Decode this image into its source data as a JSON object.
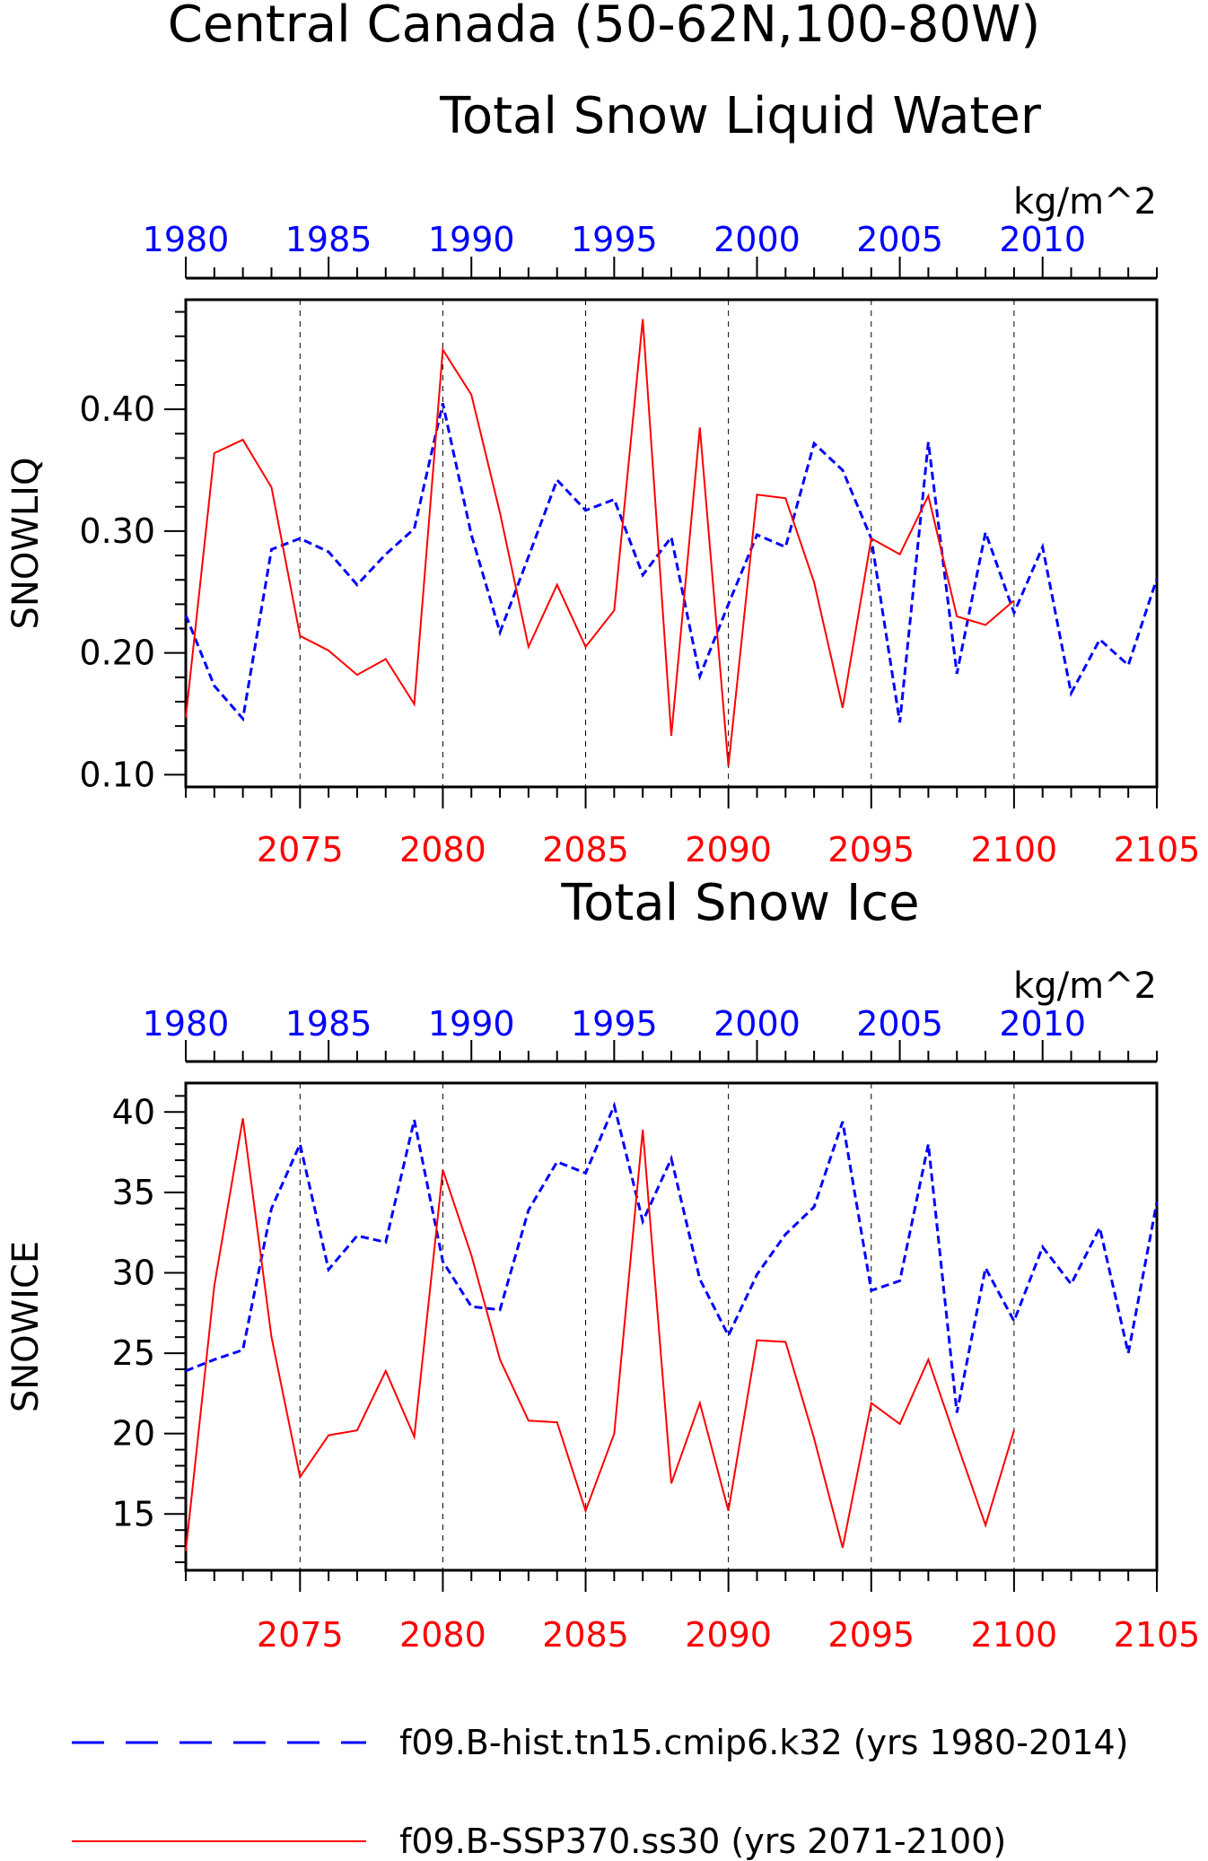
{
  "figure": {
    "title_line1": "Central Canada (50-62N,100-80W)"
  },
  "chart_data": [
    {
      "type": "line",
      "title": "Total Snow Liquid Water",
      "ylabel": "SNOWLIQ",
      "units": "kg/m^2",
      "ylim": [
        0.09,
        0.49
      ],
      "yticks": [
        0.1,
        0.2,
        0.3,
        0.4
      ],
      "ytick_labels": [
        "0.10",
        "0.20",
        "0.30",
        "0.40"
      ],
      "x_bottom": {
        "lim": [
          2071,
          2105
        ],
        "ticks": [
          2075,
          2080,
          2085,
          2090,
          2095,
          2100,
          2105
        ],
        "color": "#ff0000"
      },
      "x_top": {
        "lim": [
          1980,
          2014
        ],
        "ticks": [
          1980,
          1985,
          1990,
          1995,
          2000,
          2005,
          2010
        ],
        "color": "#0000ff"
      },
      "series": [
        {
          "name": "f09.B-hist.tn15.cmip6.k32 (yrs 1980-2014)",
          "axis": "top",
          "color": "#0000ff",
          "dash": "dashed",
          "x": [
            1980,
            1981,
            1982,
            1983,
            1984,
            1985,
            1986,
            1987,
            1988,
            1989,
            1990,
            1991,
            1992,
            1993,
            1994,
            1995,
            1996,
            1997,
            1998,
            1999,
            2000,
            2001,
            2002,
            2003,
            2004,
            2005,
            2006,
            2007,
            2008,
            2009,
            2010,
            2011,
            2012,
            2013,
            2014
          ],
          "values": [
            0.231,
            0.173,
            0.146,
            0.285,
            0.294,
            0.283,
            0.256,
            0.281,
            0.302,
            0.405,
            0.297,
            0.217,
            0.279,
            0.342,
            0.317,
            0.326,
            0.264,
            0.295,
            0.181,
            0.24,
            0.297,
            0.287,
            0.372,
            0.35,
            0.294,
            0.143,
            0.373,
            0.183,
            0.299,
            0.233,
            0.287,
            0.167,
            0.211,
            0.19,
            0.261
          ]
        },
        {
          "name": "f09.B-SSP370.ss30 (yrs 2071-2100)",
          "axis": "bottom",
          "color": "#ff0000",
          "dash": "solid",
          "x": [
            2071,
            2072,
            2073,
            2074,
            2075,
            2076,
            2077,
            2078,
            2079,
            2080,
            2081,
            2082,
            2083,
            2084,
            2085,
            2086,
            2087,
            2088,
            2089,
            2090,
            2091,
            2092,
            2093,
            2094,
            2095,
            2096,
            2097,
            2098,
            2099,
            2100
          ],
          "values": [
            0.147,
            0.364,
            0.375,
            0.336,
            0.214,
            0.202,
            0.182,
            0.195,
            0.158,
            0.449,
            0.412,
            0.315,
            0.205,
            0.256,
            0.205,
            0.235,
            0.474,
            0.132,
            0.385,
            0.107,
            0.33,
            0.327,
            0.258,
            0.155,
            0.294,
            0.281,
            0.329,
            0.23,
            0.223,
            0.243
          ]
        }
      ]
    },
    {
      "type": "line",
      "title": "Total Snow Ice",
      "ylabel": "SNOWICE",
      "units": "kg/m^2",
      "ylim": [
        11.5,
        41.8
      ],
      "yticks": [
        15,
        20,
        25,
        30,
        35,
        40
      ],
      "ytick_labels": [
        "15",
        "20",
        "25",
        "30",
        "35",
        "40"
      ],
      "x_bottom": {
        "lim": [
          2071,
          2105
        ],
        "ticks": [
          2075,
          2080,
          2085,
          2090,
          2095,
          2100,
          2105
        ],
        "color": "#ff0000"
      },
      "x_top": {
        "lim": [
          1980,
          2014
        ],
        "ticks": [
          1980,
          1985,
          1990,
          1995,
          2000,
          2005,
          2010
        ],
        "color": "#0000ff"
      },
      "series": [
        {
          "name": "f09.B-hist.tn15.cmip6.k32 (yrs 1980-2014)",
          "axis": "top",
          "color": "#0000ff",
          "dash": "dashed",
          "x": [
            1980,
            1981,
            1982,
            1983,
            1984,
            1985,
            1986,
            1987,
            1988,
            1989,
            1990,
            1991,
            1992,
            1993,
            1994,
            1995,
            1996,
            1997,
            1998,
            1999,
            2000,
            2001,
            2002,
            2003,
            2004,
            2005,
            2006,
            2007,
            2008,
            2009,
            2010,
            2011,
            2012,
            2013,
            2014
          ],
          "values": [
            23.9,
            24.6,
            25.2,
            34.0,
            38.0,
            30.2,
            32.3,
            31.9,
            39.5,
            30.7,
            27.9,
            27.7,
            33.9,
            36.9,
            36.2,
            40.4,
            33.2,
            37.1,
            29.6,
            26.1,
            29.9,
            32.4,
            34.1,
            39.4,
            28.9,
            29.5,
            38.0,
            21.3,
            30.3,
            27.0,
            31.6,
            29.3,
            32.8,
            25.0,
            34.4
          ]
        },
        {
          "name": "f09.B-SSP370.ss30 (yrs 2071-2100)",
          "axis": "bottom",
          "color": "#ff0000",
          "dash": "solid",
          "x": [
            2071,
            2072,
            2073,
            2074,
            2075,
            2076,
            2077,
            2078,
            2079,
            2080,
            2081,
            2082,
            2083,
            2084,
            2085,
            2086,
            2087,
            2088,
            2089,
            2090,
            2091,
            2092,
            2093,
            2094,
            2095,
            2096,
            2097,
            2098,
            2099,
            2100
          ],
          "values": [
            12.7,
            29.2,
            39.6,
            26.0,
            17.3,
            19.9,
            20.2,
            23.9,
            19.8,
            36.4,
            31.1,
            24.6,
            20.8,
            20.7,
            15.2,
            20.0,
            38.9,
            16.9,
            21.9,
            15.2,
            25.8,
            25.7,
            19.7,
            12.9,
            21.9,
            20.6,
            24.6,
            19.4,
            14.3,
            20.2
          ]
        }
      ]
    }
  ],
  "legend": {
    "entries": [
      {
        "label": "f09.B-hist.tn15.cmip6.k32 (yrs 1980-2014)",
        "color": "#0000ff",
        "dash": "dashed"
      },
      {
        "label": "f09.B-SSP370.ss30 (yrs 2071-2100)",
        "color": "#ff0000",
        "dash": "solid"
      }
    ]
  }
}
